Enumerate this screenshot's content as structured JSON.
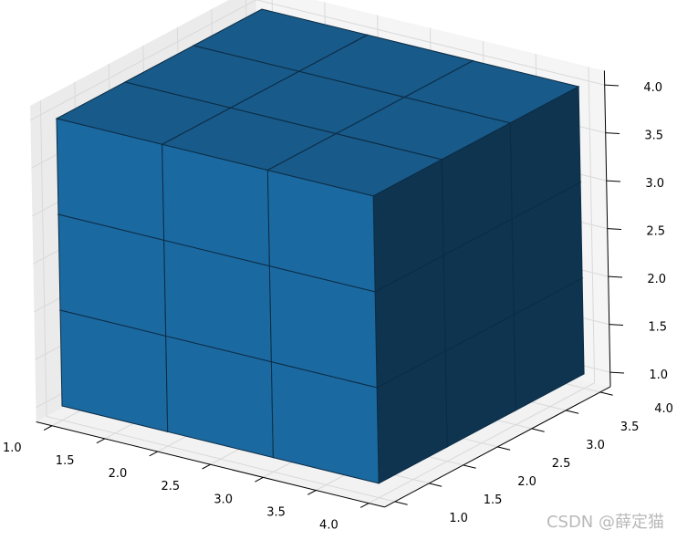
{
  "chart_data": {
    "type": "voxel",
    "title": "",
    "xlabel": "",
    "ylabel": "",
    "zlabel": "",
    "grid": true,
    "filled": {
      "x": [
        1,
        2,
        3
      ],
      "y": [
        1,
        2,
        3
      ],
      "z": [
        1,
        2,
        3
      ],
      "size": 1
    },
    "xlim": [
      0.85,
      4.15
    ],
    "ylim": [
      0.85,
      4.15
    ],
    "zlim": [
      0.85,
      4.15
    ],
    "xticks": [
      "1.0",
      "1.5",
      "2.0",
      "2.5",
      "3.0",
      "3.5",
      "4.0"
    ],
    "yticks": [
      "1.0",
      "1.5",
      "2.0",
      "2.5",
      "3.0",
      "3.5",
      "4.0"
    ],
    "zticks": [
      "1.0",
      "1.5",
      "2.0",
      "2.5",
      "3.0",
      "3.5",
      "4.0"
    ],
    "colors": {
      "front": "#1b69a1",
      "top": "#185a89",
      "side": "#0e3450",
      "edge": "#0c2c45",
      "pane": "#f2f2f2",
      "gridline": "#d9d9d9"
    }
  },
  "watermark": "CSDN @薛定猫"
}
